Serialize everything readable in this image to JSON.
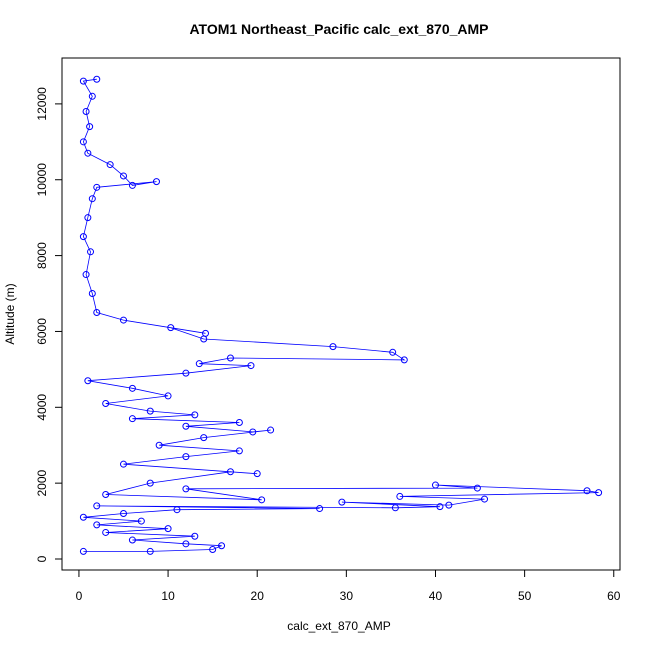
{
  "chart_data": {
    "type": "line",
    "title": "ATOM1 Northeast_Pacific calc_ext_870_AMP",
    "x_label": "calc_ext_870_AMP",
    "y_label": "Altitude (m)",
    "xlim": [
      -1.9,
      60.7
    ],
    "ylim": [
      -290,
      13210
    ],
    "xticks": [
      0,
      10,
      20,
      30,
      40,
      50,
      60
    ],
    "yticks": [
      0,
      2000,
      4000,
      6000,
      8000,
      10000,
      12000
    ],
    "series": [
      {
        "color": "#0000ff",
        "x": [
          0.5,
          8,
          15,
          16,
          12,
          6,
          13,
          3,
          10,
          2,
          7,
          0.5,
          5,
          11,
          27,
          2,
          35.5,
          40.5,
          29.5,
          41.5,
          45.5,
          36,
          58.3,
          57,
          40,
          44.7,
          12,
          20.5,
          3,
          8,
          17,
          20,
          5,
          12,
          18,
          9,
          14,
          21.5,
          19.5,
          12,
          18,
          6,
          13,
          8,
          3,
          10,
          6,
          1,
          12,
          19.3,
          13.5,
          17,
          36.5,
          35.2,
          28.5,
          14,
          10.3,
          14.2,
          5,
          2,
          1.5,
          0.8,
          1.3,
          0.5,
          1,
          1.5,
          2,
          8.7,
          6,
          5,
          3.5,
          1,
          0.5,
          1.2,
          0.8,
          1.5,
          0.5,
          2
        ],
        "y": [
          200,
          200,
          250,
          350,
          400,
          500,
          600,
          700,
          800,
          900,
          1000,
          1100,
          1200,
          1300,
          1330,
          1400,
          1350,
          1380,
          1500,
          1420,
          1580,
          1650,
          1750,
          1800,
          1950,
          1870,
          1850,
          1560,
          1700,
          2000,
          2300,
          2250,
          2500,
          2700,
          2850,
          3000,
          3200,
          3400,
          3350,
          3500,
          3600,
          3700,
          3800,
          3900,
          4100,
          4300,
          4500,
          4700,
          4900,
          5100,
          5150,
          5300,
          5250,
          5450,
          5600,
          5800,
          6100,
          5950,
          6300,
          6500,
          7000,
          7500,
          8100,
          8500,
          9000,
          9500,
          9800,
          9950,
          9850,
          10100,
          10400,
          10700,
          11000,
          11400,
          11800,
          12200,
          12600,
          12650
        ]
      }
    ]
  }
}
